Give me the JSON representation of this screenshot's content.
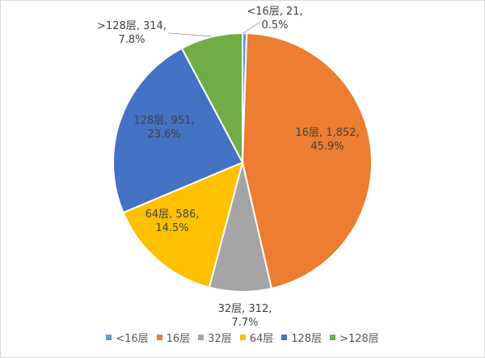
{
  "chart_data": {
    "type": "pie",
    "title": "",
    "categories": [
      "<16层",
      "16层",
      "32层",
      "64层",
      "128层",
      ">128层"
    ],
    "values": [
      21,
      1852,
      312,
      586,
      951,
      314
    ],
    "percents": [
      "0.5%",
      "45.9%",
      "7.7%",
      "14.5%",
      "23.6%",
      "7.8%"
    ],
    "data_labels": [
      [
        "<16层, 21,",
        "0.5%"
      ],
      [
        "16层, 1,852,",
        "45.9%"
      ],
      [
        "32层, 312,",
        "7.7%"
      ],
      [
        "64层, 586,",
        "14.5%"
      ],
      [
        "128层, 951,",
        "23.6%"
      ],
      [
        ">128层, 314,",
        "7.8%"
      ]
    ],
    "colors": [
      "#5B9BD5",
      "#ED7D31",
      "#A5A5A5",
      "#FFC000",
      "#4472C4",
      "#70AD47"
    ],
    "legend_position": "bottom",
    "start_angle": "top, clockwise"
  }
}
